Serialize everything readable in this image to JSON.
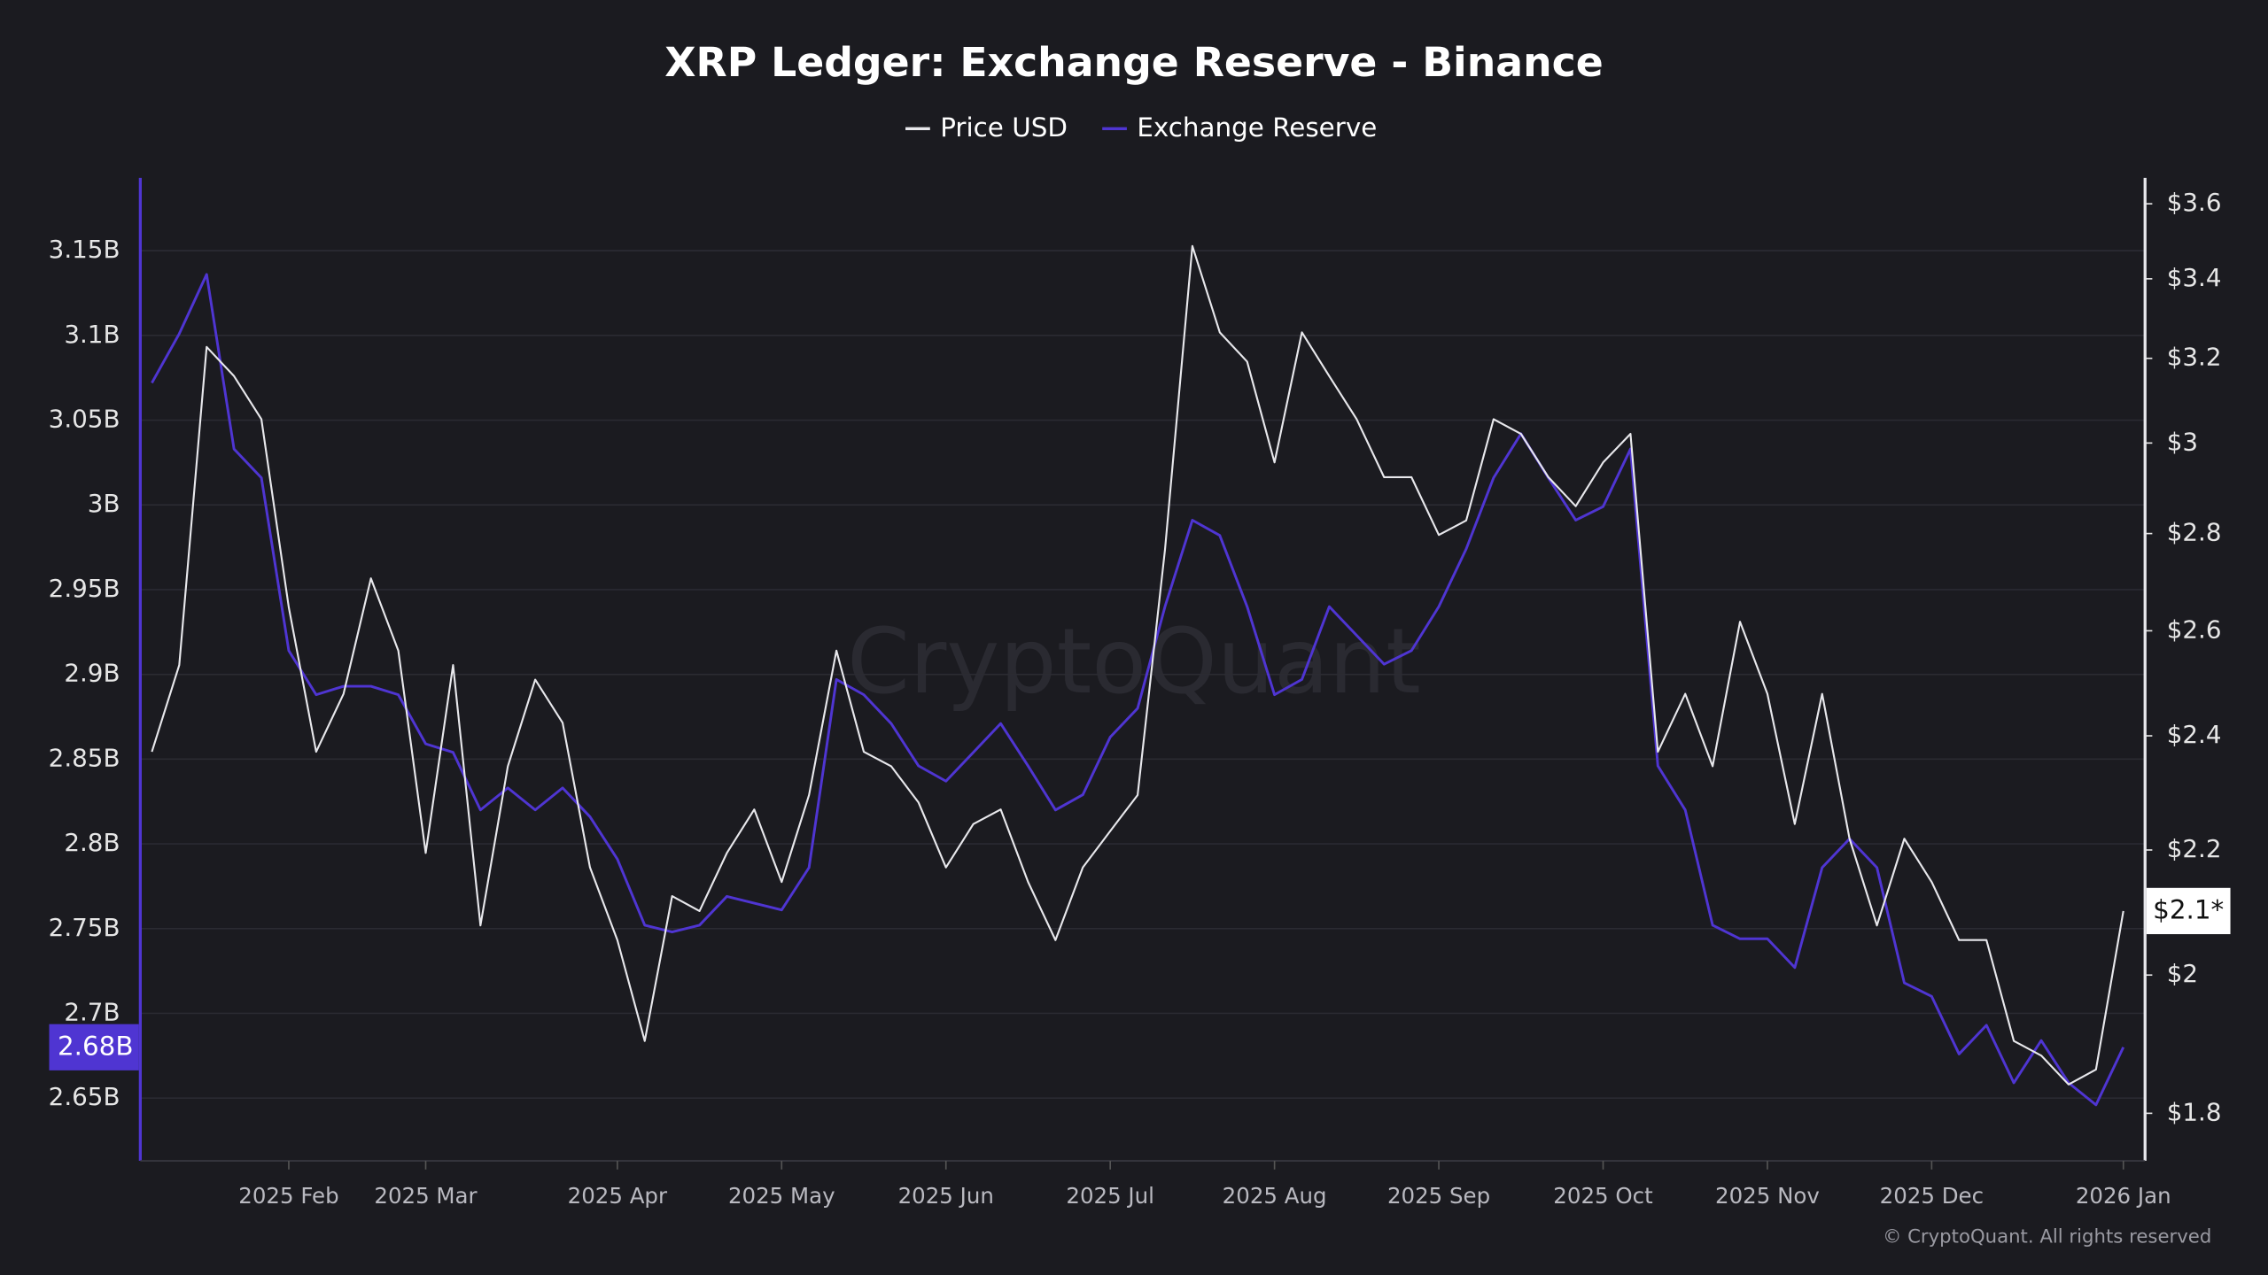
{
  "chart_data": {
    "type": "line",
    "title": "XRP Ledger: Exchange Reserve - Binance",
    "categories": [
      null,
      null,
      null,
      null,
      null,
      "2025 Feb",
      null,
      null,
      null,
      null,
      "2025 Mar",
      null,
      null,
      null,
      null,
      null,
      null,
      "2025 Apr",
      null,
      null,
      null,
      null,
      null,
      "2025 May",
      null,
      null,
      null,
      null,
      null,
      "2025 Jun",
      null,
      null,
      null,
      null,
      null,
      "2025 Jul",
      null,
      null,
      null,
      null,
      null,
      "2025 Aug",
      null,
      null,
      null,
      null,
      null,
      "2025 Sep",
      null,
      null,
      null,
      null,
      null,
      "2025 Oct",
      null,
      null,
      null,
      null,
      null,
      "2025 Nov",
      null,
      null,
      null,
      null,
      null,
      "2025 Dec",
      null,
      null,
      null,
      null,
      null,
      null,
      "2026 Jan"
    ],
    "series": [
      {
        "name": "Price USD",
        "color": "#e8e8ec",
        "axis": "y2",
        "values": [
          2.371,
          2.533,
          3.228,
          3.157,
          3.055,
          2.647,
          2.371,
          2.478,
          2.706,
          2.561,
          2.195,
          2.533,
          2.077,
          2.345,
          2.505,
          2.424,
          2.171,
          2.054,
          1.902,
          2.124,
          2.1,
          2.195,
          2.269,
          2.147,
          2.294,
          2.561,
          2.371,
          2.345,
          2.281,
          2.171,
          2.244,
          2.269,
          2.147,
          2.054,
          2.171,
          2.232,
          2.294,
          2.766,
          3.486,
          3.264,
          3.192,
          2.956,
          3.264,
          3.157,
          3.055,
          2.923,
          2.923,
          2.797,
          2.828,
          3.055,
          3.021,
          2.923,
          2.859,
          2.956,
          3.021,
          2.371,
          2.478,
          2.345,
          2.618,
          2.478,
          2.244,
          2.478,
          2.219,
          2.077,
          2.219,
          2.147,
          2.054,
          2.054,
          1.902,
          1.881,
          1.84,
          1.861,
          2.1
        ]
      },
      {
        "name": "Exchange Reserve",
        "color": "#4f35d2",
        "values": [
          3072000000,
          3101000000,
          3136000000,
          3033000000,
          3016000000,
          2914000000,
          2888000000,
          2893000000,
          2893000000,
          2888000000,
          2859000000,
          2854000000,
          2820000000,
          2833000000,
          2820000000,
          2833000000,
          2816000000,
          2791000000,
          2752000000,
          2748000000,
          2752000000,
          2769000000,
          2765000000,
          2761000000,
          2786000000,
          2897000000,
          2888000000,
          2871000000,
          2846000000,
          2837000000,
          2854000000,
          2871000000,
          2846000000,
          2820000000,
          2829000000,
          2863000000,
          2880000000,
          2940000000,
          2991000000,
          2982000000,
          2940000000,
          2888000000,
          2897000000,
          2940000000,
          2923000000,
          2906000000,
          2914000000,
          2940000000,
          2974000000,
          3016000000,
          3042000000,
          3016000000,
          2991000000,
          2999000000,
          3033000000,
          2846000000,
          2820000000,
          2752000000,
          2744000000,
          2744000000,
          2727000000,
          2786000000,
          2803000000,
          2786000000,
          2718000000,
          2710000000,
          2676000000,
          2693000000,
          2659000000,
          2684000000,
          2659000000,
          2646000000,
          2680000000
        ]
      }
    ],
    "ylim": [
      2613000000,
      3193000000
    ],
    "yticks": [
      {
        "value": 2650000000,
        "label": "2.65B"
      },
      {
        "value": 2700000000,
        "label": "2.7B"
      },
      {
        "value": 2750000000,
        "label": "2.75B"
      },
      {
        "value": 2800000000,
        "label": "2.8B"
      },
      {
        "value": 2850000000,
        "label": "2.85B"
      },
      {
        "value": 2900000000,
        "label": "2.9B"
      },
      {
        "value": 2950000000,
        "label": "2.95B"
      },
      {
        "value": 3000000000,
        "label": "3B"
      },
      {
        "value": 3050000000,
        "label": "3.05B"
      },
      {
        "value": 3100000000,
        "label": "3.1B"
      },
      {
        "value": 3150000000,
        "label": "3.15B"
      }
    ],
    "y2lim": [
      1.736,
      3.672
    ],
    "y2log": true,
    "y2ticks": [
      {
        "value": 1.8,
        "label": "$1.8"
      },
      {
        "value": 2,
        "label": "$2"
      },
      {
        "value": 2.2,
        "label": "$2.2"
      },
      {
        "value": 2.4,
        "label": "$2.4"
      },
      {
        "value": 2.6,
        "label": "$2.6"
      },
      {
        "value": 2.8,
        "label": "$2.8"
      },
      {
        "value": 3,
        "label": "$3"
      },
      {
        "value": 3.2,
        "label": "$3.2"
      },
      {
        "value": 3.4,
        "label": "$3.4"
      },
      {
        "value": 3.6,
        "label": "$3.6"
      }
    ],
    "grid": true,
    "legend": "top",
    "annotations": [
      {
        "text": "2.68B",
        "axis": "y",
        "value": 2680000000
      },
      {
        "text": "$2.1*",
        "axis": "y2",
        "value": 2.1
      }
    ],
    "watermark": "CryptoQuant",
    "credit": "© CryptoQuant. All rights reserved"
  }
}
